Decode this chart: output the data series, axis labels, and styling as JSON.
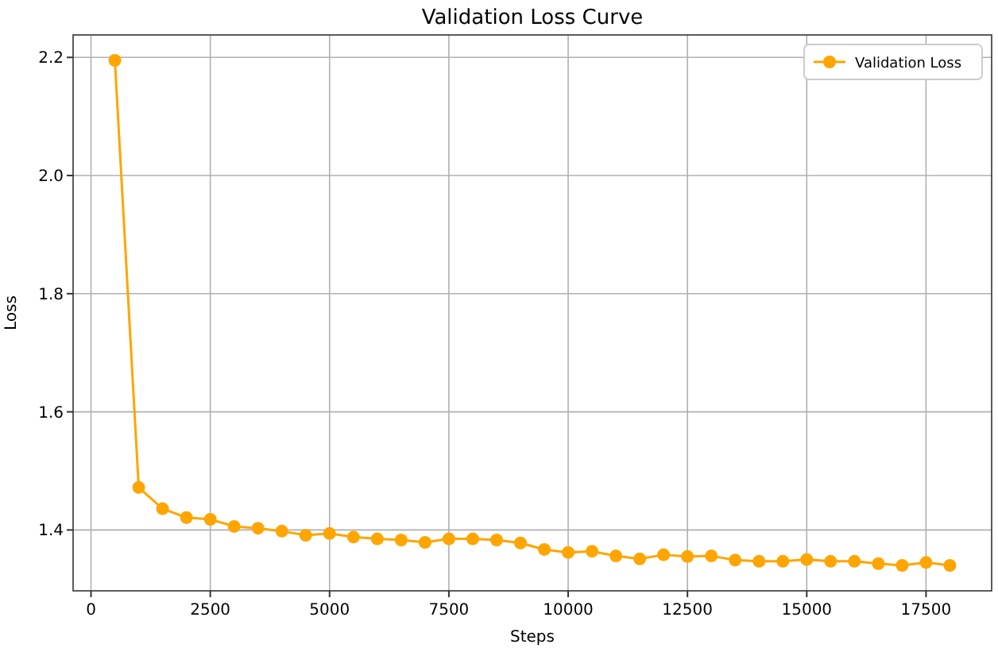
{
  "chart_data": {
    "type": "line",
    "title": "Validation Loss Curve",
    "xlabel": "Steps",
    "ylabel": "Loss",
    "x": [
      500,
      1000,
      1500,
      2000,
      2500,
      3000,
      3500,
      4000,
      4500,
      5000,
      5500,
      6000,
      6500,
      7000,
      7500,
      8000,
      8500,
      9000,
      9500,
      10000,
      10500,
      11000,
      11500,
      12000,
      12500,
      13000,
      13500,
      14000,
      14500,
      15000,
      15500,
      16000,
      16500,
      17000,
      17500,
      18000
    ],
    "series": [
      {
        "name": "Validation Loss",
        "color": "#ffa500",
        "values": [
          2.195,
          1.472,
          1.436,
          1.421,
          1.418,
          1.406,
          1.403,
          1.398,
          1.391,
          1.394,
          1.388,
          1.385,
          1.383,
          1.379,
          1.385,
          1.385,
          1.383,
          1.378,
          1.367,
          1.362,
          1.364,
          1.356,
          1.351,
          1.358,
          1.355,
          1.356,
          1.349,
          1.347,
          1.347,
          1.35,
          1.347,
          1.347,
          1.343,
          1.34,
          1.345,
          1.34
        ]
      }
    ],
    "xlim": [
      -375,
      18875
    ],
    "xticks": [
      0,
      2500,
      5000,
      7500,
      10000,
      12500,
      15000,
      17500
    ],
    "ylim": [
      1.297,
      2.238
    ],
    "yticks": [
      {
        "value": 1.4,
        "label": "1.4"
      },
      {
        "value": 1.6,
        "label": "1.6"
      },
      {
        "value": 1.8,
        "label": "1.8"
      },
      {
        "value": 2,
        "label": "2.0"
      },
      {
        "value": 2.2,
        "label": "2.2"
      }
    ],
    "grid": true,
    "legend": "top right",
    "marker": "circle",
    "line_style": "solid"
  }
}
